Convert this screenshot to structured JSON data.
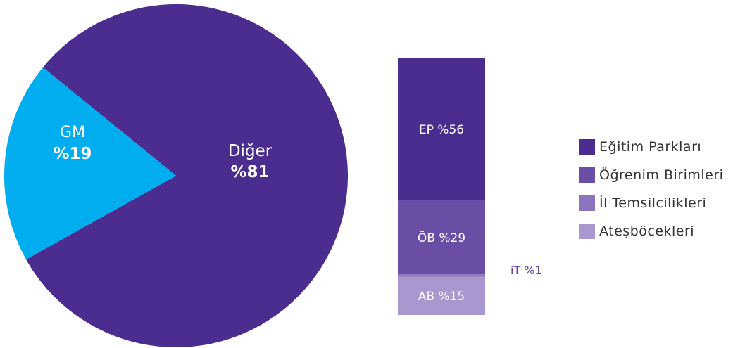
{
  "chart_data": [
    {
      "type": "pie",
      "slices": [
        {
          "label": "Diğer",
          "value": 81,
          "value_label": "%81",
          "color": "#4b2d8f"
        },
        {
          "label": "GM",
          "value": 19,
          "value_label": "%19",
          "color": "#00adef"
        }
      ]
    },
    {
      "type": "bar",
      "stacked": true,
      "segments": [
        {
          "label": "EP %56",
          "value": 56,
          "color": "#4b2d8f"
        },
        {
          "label": "ÖB %29",
          "value": 29,
          "color": "#6a4ea6"
        },
        {
          "label": "iT %1",
          "value": 1,
          "color": "#8b73bd"
        },
        {
          "label": "AB %15",
          "value": 15,
          "color": "#a998cf"
        }
      ],
      "legend": {
        "placement": "right",
        "items": [
          {
            "label": "Eğitim Parkları",
            "color": "#4b2d8f"
          },
          {
            "label": "Öğrenim Birimleri",
            "color": "#6a4ea6"
          },
          {
            "label": "İl Temsilcilikleri",
            "color": "#8b73bd"
          },
          {
            "label": "Ateşböcekleri",
            "color": "#a998cf"
          }
        ]
      }
    }
  ]
}
